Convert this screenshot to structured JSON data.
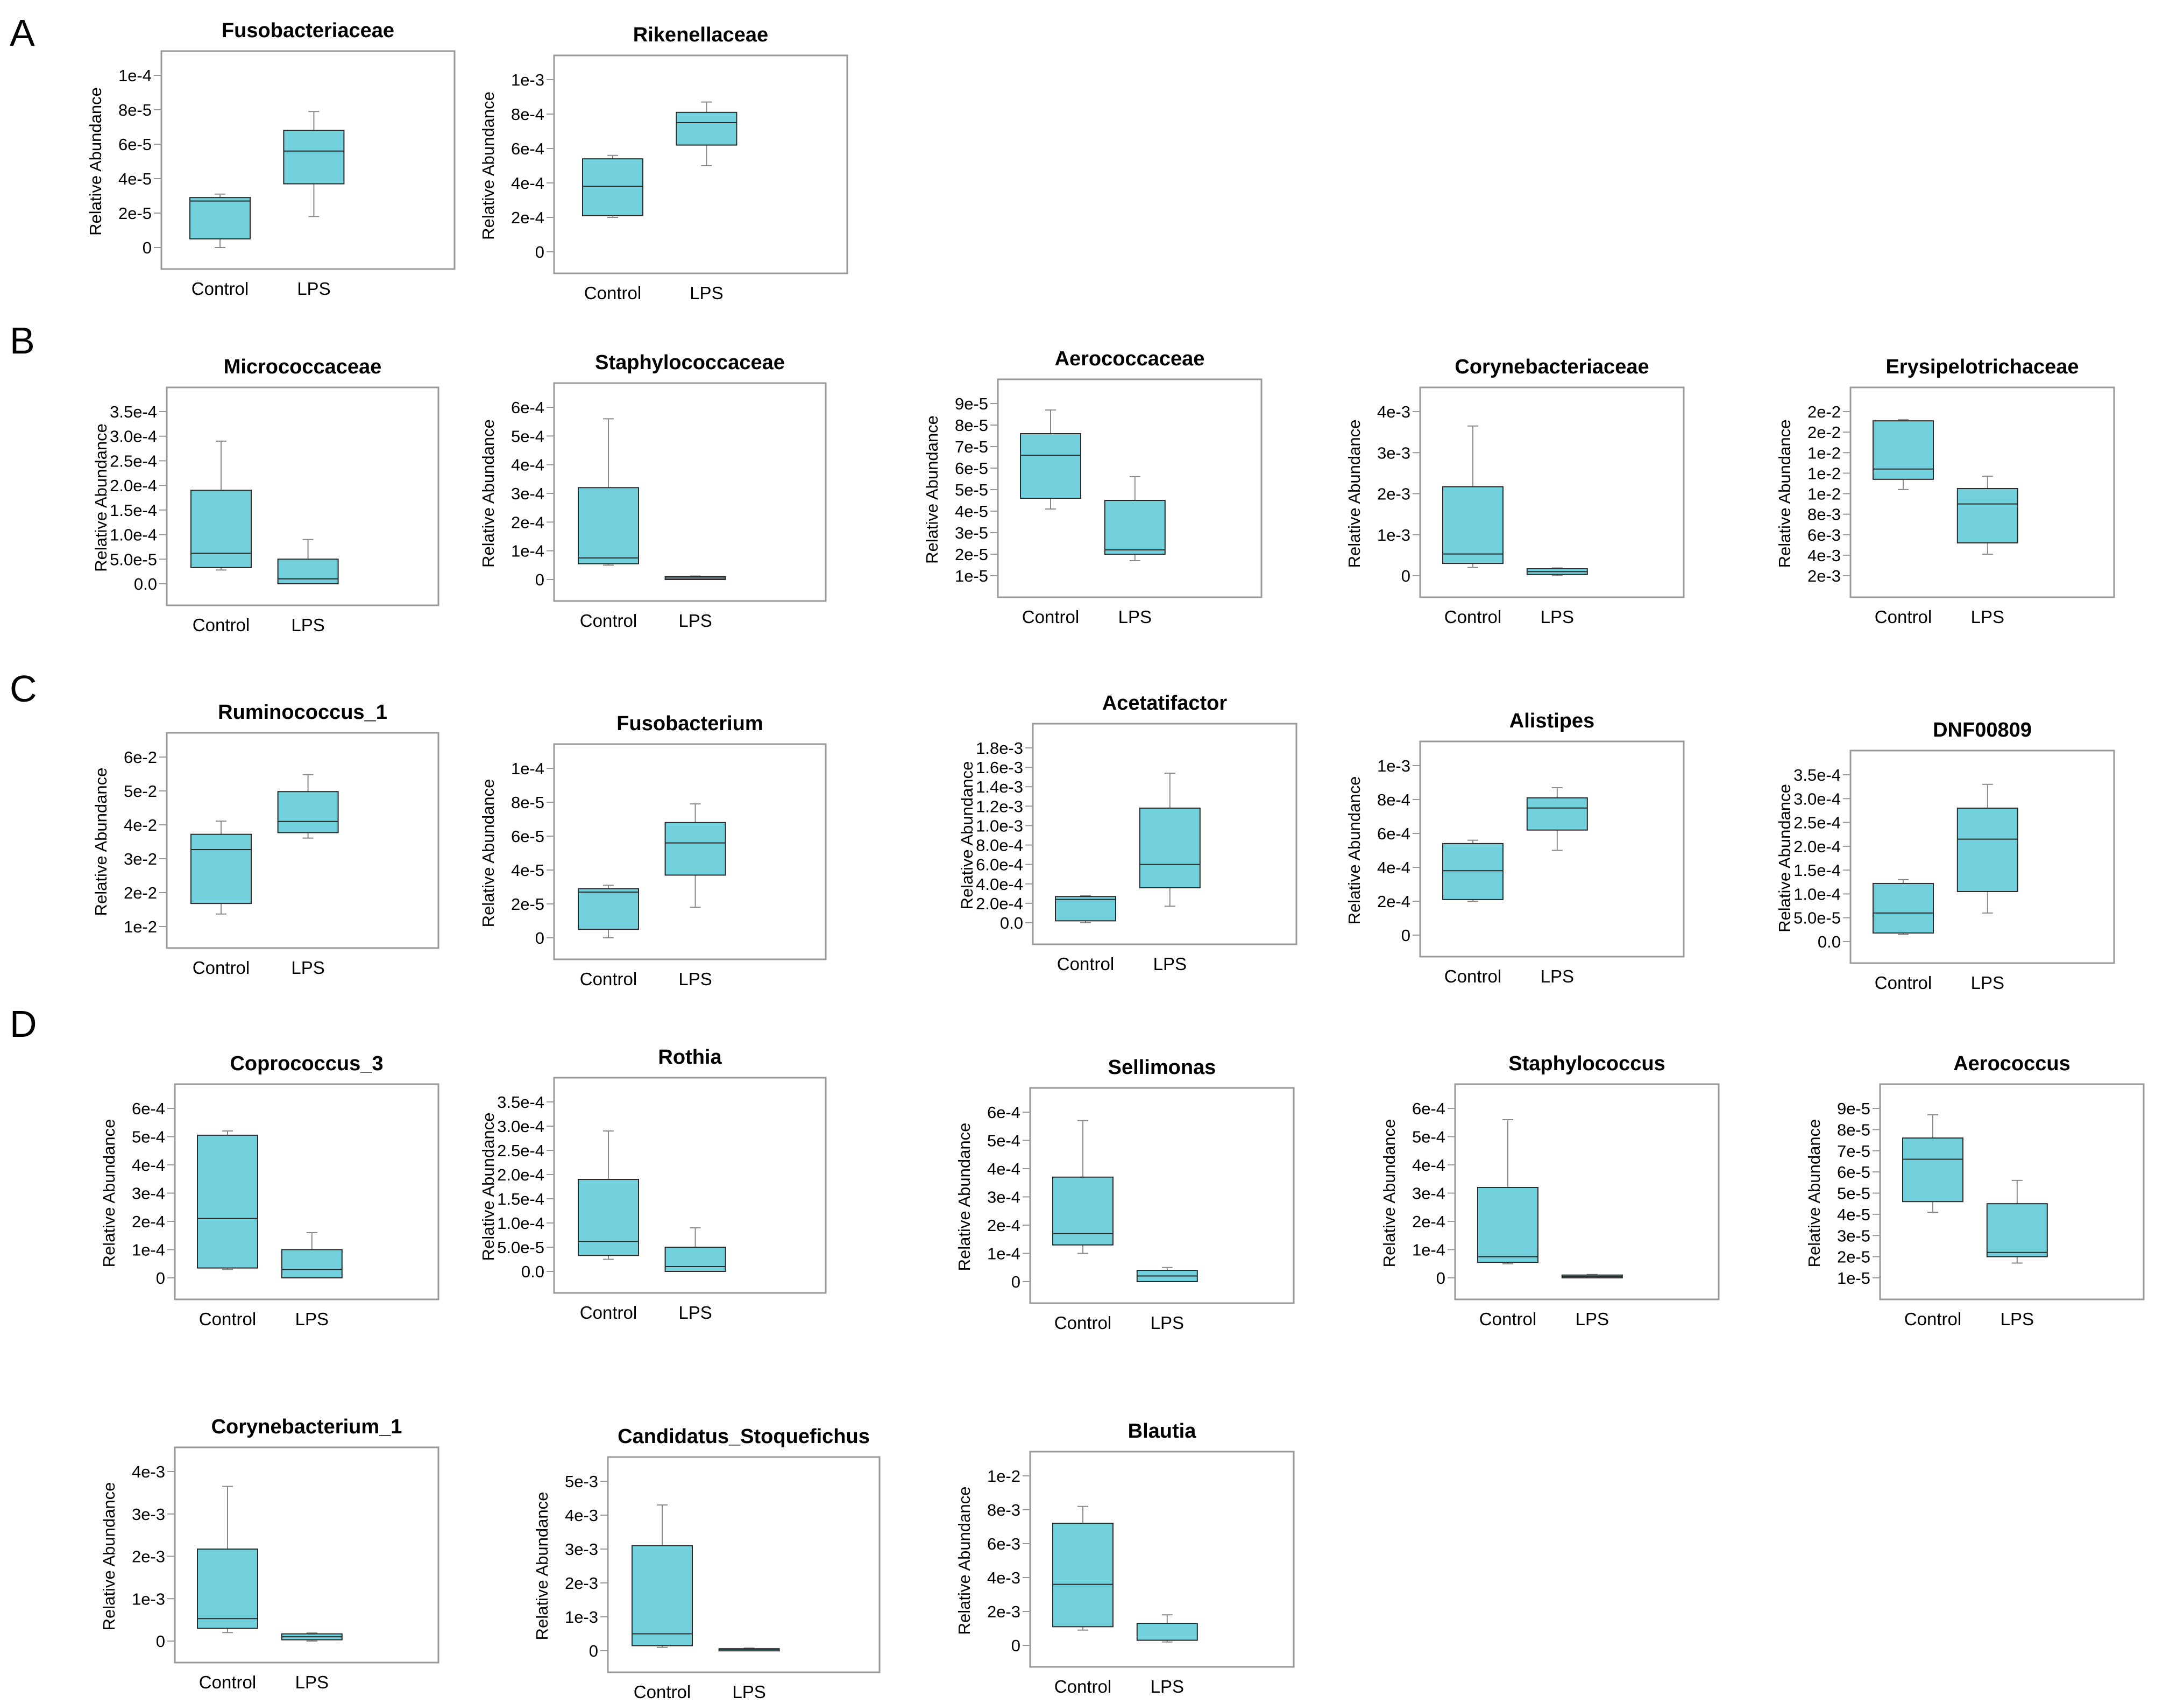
{
  "colors": {
    "box_fill": "#72D1DD",
    "box_edge": "#2a2a2a",
    "frame": "#999999",
    "text": "#000000",
    "whisker": "#8a8a8a"
  },
  "panel_labels": [
    "A",
    "B",
    "C",
    "D"
  ],
  "chart_data": [
    {
      "type": "box",
      "title": "Fusobacteriaceae",
      "ylabel": "Relative Abundance",
      "categories": [
        "Control",
        "LPS"
      ],
      "yticks": [
        "0",
        "2e-5",
        "4e-5",
        "6e-5",
        "8e-5",
        "1e-4"
      ],
      "ylim": [
        0,
        0.0001
      ],
      "series": [
        {
          "name": "Control",
          "min": 0.0,
          "q1": 5e-06,
          "median": 2.7e-05,
          "q3": 2.9e-05,
          "max": 3.1e-05
        },
        {
          "name": "LPS",
          "min": 1.8e-05,
          "q1": 3.7e-05,
          "median": 5.6e-05,
          "q3": 6.8e-05,
          "max": 7.9e-05
        }
      ]
    },
    {
      "type": "box",
      "title": "Rikenellaceae",
      "ylabel": "Relative Abundance",
      "categories": [
        "Control",
        "LPS"
      ],
      "yticks": [
        "0",
        "2e-4",
        "4e-4",
        "6e-4",
        "8e-4",
        "1e-3"
      ],
      "ylim": [
        0,
        0.001
      ],
      "series": [
        {
          "name": "Control",
          "min": 0.0002,
          "q1": 0.00021,
          "median": 0.00038,
          "q3": 0.00054,
          "max": 0.00056
        },
        {
          "name": "LPS",
          "min": 0.0005,
          "q1": 0.00062,
          "median": 0.00075,
          "q3": 0.00081,
          "max": 0.00087
        }
      ]
    },
    {
      "type": "box",
      "title": "Micrococcaceae",
      "ylabel": "Relative Abundance",
      "categories": [
        "Control",
        "LPS"
      ],
      "yticks": [
        "0.0",
        "5.0e-5",
        "1.0e-4",
        "1.5e-4",
        "2.0e-4",
        "2.5e-4",
        "3.0e-4",
        "3.5e-4"
      ],
      "ylim": [
        0,
        0.00035
      ],
      "series": [
        {
          "name": "Control",
          "min": 2.8e-05,
          "q1": 3.3e-05,
          "median": 6.2e-05,
          "q3": 0.00019,
          "max": 0.00029
        },
        {
          "name": "LPS",
          "min": 0.0,
          "q1": 0.0,
          "median": 1e-05,
          "q3": 5e-05,
          "max": 9e-05
        }
      ]
    },
    {
      "type": "box",
      "title": "Staphylococcaceae",
      "ylabel": "Relative Abundance",
      "categories": [
        "Control",
        "LPS"
      ],
      "yticks": [
        "0",
        "1e-4",
        "2e-4",
        "3e-4",
        "4e-4",
        "5e-4",
        "6e-4"
      ],
      "ylim": [
        0,
        0.0006
      ],
      "series": [
        {
          "name": "Control",
          "min": 5e-05,
          "q1": 5.5e-05,
          "median": 7.5e-05,
          "q3": 0.00032,
          "max": 0.00056
        },
        {
          "name": "LPS",
          "min": 0.0,
          "q1": 0.0,
          "median": 5e-06,
          "q3": 1e-05,
          "max": 1.2e-05
        }
      ]
    },
    {
      "type": "box",
      "title": "Aerococcaceae",
      "ylabel": "Relative Abundance",
      "categories": [
        "Control",
        "LPS"
      ],
      "yticks": [
        "1e-5",
        "2e-5",
        "3e-5",
        "4e-5",
        "5e-5",
        "6e-5",
        "7e-5",
        "8e-5",
        "9e-5"
      ],
      "ylim": [
        1e-05,
        9e-05
      ],
      "series": [
        {
          "name": "Control",
          "min": 4.1e-05,
          "q1": 4.6e-05,
          "median": 6.6e-05,
          "q3": 7.6e-05,
          "max": 8.7e-05
        },
        {
          "name": "LPS",
          "min": 1.7e-05,
          "q1": 2e-05,
          "median": 2.2e-05,
          "q3": 4.5e-05,
          "max": 5.6e-05
        }
      ]
    },
    {
      "type": "box",
      "title": "Corynebacteriaceae",
      "ylabel": "Relative Abundance",
      "categories": [
        "Control",
        "LPS"
      ],
      "yticks": [
        "0",
        "1e-3",
        "2e-3",
        "3e-3",
        "4e-3"
      ],
      "ylim": [
        0,
        0.004
      ],
      "series": [
        {
          "name": "Control",
          "min": 0.0002,
          "q1": 0.0003,
          "median": 0.00053,
          "q3": 0.00217,
          "max": 0.00365
        },
        {
          "name": "LPS",
          "min": 0.0,
          "q1": 3e-05,
          "median": 0.0001,
          "q3": 0.00017,
          "max": 0.00019
        }
      ]
    },
    {
      "type": "box",
      "title": "Erysipelotrichaceae",
      "ylabel": "Relative Abundance",
      "categories": [
        "Control",
        "LPS"
      ],
      "yticks": [
        "2e-3",
        "4e-3",
        "6e-3",
        "8e-3",
        "1e-2",
        "1e-2",
        "1e-2",
        "2e-2",
        "2e-2"
      ],
      "ylim": [
        0.002,
        0.018
      ],
      "series": [
        {
          "name": "Control",
          "min": 0.0104,
          "q1": 0.0114,
          "median": 0.0124,
          "q3": 0.0171,
          "max": 0.0172
        },
        {
          "name": "LPS",
          "min": 0.0041,
          "q1": 0.0052,
          "median": 0.009,
          "q3": 0.0105,
          "max": 0.0117
        }
      ]
    },
    {
      "type": "box",
      "title": "Ruminococcus_1",
      "ylabel": "Relative Abundance",
      "categories": [
        "Control",
        "LPS"
      ],
      "yticks": [
        "1e-2",
        "2e-2",
        "3e-2",
        "4e-2",
        "5e-2",
        "6e-2"
      ],
      "ylim": [
        0.01,
        0.06
      ],
      "series": [
        {
          "name": "Control",
          "min": 0.0137,
          "q1": 0.0168,
          "median": 0.0327,
          "q3": 0.0372,
          "max": 0.0411
        },
        {
          "name": "LPS",
          "min": 0.0361,
          "q1": 0.0377,
          "median": 0.041,
          "q3": 0.0498,
          "max": 0.0548
        }
      ]
    },
    {
      "type": "box",
      "title": "Fusobacterium",
      "ylabel": "Relative Abundance",
      "categories": [
        "Control",
        "LPS"
      ],
      "yticks": [
        "0",
        "2e-5",
        "4e-5",
        "6e-5",
        "8e-5",
        "1e-4"
      ],
      "ylim": [
        0,
        0.0001
      ],
      "series": [
        {
          "name": "Control",
          "min": 0.0,
          "q1": 5e-06,
          "median": 2.7e-05,
          "q3": 2.9e-05,
          "max": 3.1e-05
        },
        {
          "name": "LPS",
          "min": 1.8e-05,
          "q1": 3.7e-05,
          "median": 5.6e-05,
          "q3": 6.8e-05,
          "max": 7.9e-05
        }
      ]
    },
    {
      "type": "box",
      "title": "Acetatifactor",
      "ylabel": "Relative Abundance",
      "categories": [
        "Control",
        "LPS"
      ],
      "yticks": [
        "0.0",
        "2.0e-4",
        "4.0e-4",
        "6.0e-4",
        "8.0e-4",
        "1.0e-3",
        "1.2e-3",
        "1.4e-3",
        "1.6e-3",
        "1.8e-3"
      ],
      "ylim": [
        0,
        0.0018
      ],
      "series": [
        {
          "name": "Control",
          "min": 0.0,
          "q1": 2e-05,
          "median": 0.00024,
          "q3": 0.00027,
          "max": 0.00028
        },
        {
          "name": "LPS",
          "min": 0.00017,
          "q1": 0.00036,
          "median": 0.0006,
          "q3": 0.00118,
          "max": 0.00154
        }
      ]
    },
    {
      "type": "box",
      "title": "Alistipes",
      "ylabel": "Relative Abundance",
      "categories": [
        "Control",
        "LPS"
      ],
      "yticks": [
        "0",
        "2e-4",
        "4e-4",
        "6e-4",
        "8e-4",
        "1e-3"
      ],
      "ylim": [
        0,
        0.001
      ],
      "series": [
        {
          "name": "Control",
          "min": 0.0002,
          "q1": 0.00021,
          "median": 0.00038,
          "q3": 0.00054,
          "max": 0.00056
        },
        {
          "name": "LPS",
          "min": 0.0005,
          "q1": 0.00062,
          "median": 0.00075,
          "q3": 0.00081,
          "max": 0.00087
        }
      ]
    },
    {
      "type": "box",
      "title": "DNF00809",
      "ylabel": "Relative Abundance",
      "categories": [
        "Control",
        "LPS"
      ],
      "yticks": [
        "0.0",
        "5.0e-5",
        "1.0e-4",
        "1.5e-4",
        "2.0e-4",
        "2.5e-4",
        "3.0e-4",
        "3.5e-4"
      ],
      "ylim": [
        0,
        0.00035
      ],
      "series": [
        {
          "name": "Control",
          "min": 1.5e-05,
          "q1": 1.8e-05,
          "median": 6e-05,
          "q3": 0.000122,
          "max": 0.00013
        },
        {
          "name": "LPS",
          "min": 6e-05,
          "q1": 0.000105,
          "median": 0.000215,
          "q3": 0.00028,
          "max": 0.00033
        }
      ]
    },
    {
      "type": "box",
      "title": "Coprococcus_3",
      "ylabel": "Relative Abundance",
      "categories": [
        "Control",
        "LPS"
      ],
      "yticks": [
        "0",
        "1e-4",
        "2e-4",
        "3e-4",
        "4e-4",
        "5e-4",
        "6e-4"
      ],
      "ylim": [
        0,
        0.0006
      ],
      "series": [
        {
          "name": "Control",
          "min": 3e-05,
          "q1": 3.5e-05,
          "median": 0.00021,
          "q3": 0.000505,
          "max": 0.00052
        },
        {
          "name": "LPS",
          "min": 0.0,
          "q1": 0.0,
          "median": 3e-05,
          "q3": 0.0001,
          "max": 0.00016
        }
      ]
    },
    {
      "type": "box",
      "title": "Rothia",
      "ylabel": "Relative Abundance",
      "categories": [
        "Control",
        "LPS"
      ],
      "yticks": [
        "0.0",
        "5.0e-5",
        "1.0e-4",
        "1.5e-4",
        "2.0e-4",
        "2.5e-4",
        "3.0e-4",
        "3.5e-4"
      ],
      "ylim": [
        0,
        0.00035
      ],
      "series": [
        {
          "name": "Control",
          "min": 2.5e-05,
          "q1": 3.3e-05,
          "median": 6.2e-05,
          "q3": 0.00019,
          "max": 0.00029
        },
        {
          "name": "LPS",
          "min": 0.0,
          "q1": 0.0,
          "median": 1e-05,
          "q3": 5e-05,
          "max": 9e-05
        }
      ]
    },
    {
      "type": "box",
      "title": "Sellimonas",
      "ylabel": "Relative Abundance",
      "categories": [
        "Control",
        "LPS"
      ],
      "yticks": [
        "0",
        "1e-4",
        "2e-4",
        "3e-4",
        "4e-4",
        "5e-4",
        "6e-4"
      ],
      "ylim": [
        0,
        0.0006
      ],
      "series": [
        {
          "name": "Control",
          "min": 0.0001,
          "q1": 0.00013,
          "median": 0.00017,
          "q3": 0.00037,
          "max": 0.00057
        },
        {
          "name": "LPS",
          "min": 0.0,
          "q1": 0.0,
          "median": 2e-05,
          "q3": 4e-05,
          "max": 5e-05
        }
      ]
    },
    {
      "type": "box",
      "title": "Staphylococcus",
      "ylabel": "Relative Abundance",
      "categories": [
        "Control",
        "LPS"
      ],
      "yticks": [
        "0",
        "1e-4",
        "2e-4",
        "3e-4",
        "4e-4",
        "5e-4",
        "6e-4"
      ],
      "ylim": [
        0,
        0.0006
      ],
      "series": [
        {
          "name": "Control",
          "min": 5e-05,
          "q1": 5.5e-05,
          "median": 7.5e-05,
          "q3": 0.00032,
          "max": 0.00056
        },
        {
          "name": "LPS",
          "min": 0.0,
          "q1": 0.0,
          "median": 5e-06,
          "q3": 1e-05,
          "max": 1.2e-05
        }
      ]
    },
    {
      "type": "box",
      "title": "Aerococcus",
      "ylabel": "Relative Abundance",
      "categories": [
        "Control",
        "LPS"
      ],
      "yticks": [
        "1e-5",
        "2e-5",
        "3e-5",
        "4e-5",
        "5e-5",
        "6e-5",
        "7e-5",
        "8e-5",
        "9e-5"
      ],
      "ylim": [
        1e-05,
        9e-05
      ],
      "series": [
        {
          "name": "Control",
          "min": 4.1e-05,
          "q1": 4.6e-05,
          "median": 6.6e-05,
          "q3": 7.6e-05,
          "max": 8.7e-05
        },
        {
          "name": "LPS",
          "min": 1.7e-05,
          "q1": 2e-05,
          "median": 2.2e-05,
          "q3": 4.5e-05,
          "max": 5.6e-05
        }
      ]
    },
    {
      "type": "box",
      "title": "Corynebacterium_1",
      "ylabel": "Relative Abundance",
      "categories": [
        "Control",
        "LPS"
      ],
      "yticks": [
        "0",
        "1e-3",
        "2e-3",
        "3e-3",
        "4e-3"
      ],
      "ylim": [
        0,
        0.004
      ],
      "series": [
        {
          "name": "Control",
          "min": 0.0002,
          "q1": 0.0003,
          "median": 0.00053,
          "q3": 0.00217,
          "max": 0.00365
        },
        {
          "name": "LPS",
          "min": 0.0,
          "q1": 3e-05,
          "median": 0.0001,
          "q3": 0.00017,
          "max": 0.00019
        }
      ]
    },
    {
      "type": "box",
      "title": "Candidatus_Stoquefichus",
      "ylabel": "Relative Abundance",
      "categories": [
        "Control",
        "LPS"
      ],
      "yticks": [
        "0",
        "1e-3",
        "2e-3",
        "3e-3",
        "4e-3",
        "5e-3"
      ],
      "ylim": [
        0,
        0.005
      ],
      "series": [
        {
          "name": "Control",
          "min": 0.0001,
          "q1": 0.00015,
          "median": 0.0005,
          "q3": 0.0031,
          "max": 0.0043
        },
        {
          "name": "LPS",
          "min": 0.0,
          "q1": 2e-05,
          "median": 4e-05,
          "q3": 6e-05,
          "max": 8e-05
        }
      ]
    },
    {
      "type": "box",
      "title": "Blautia",
      "ylabel": "Relative Abundance",
      "categories": [
        "Control",
        "LPS"
      ],
      "yticks": [
        "0",
        "2e-3",
        "4e-3",
        "6e-3",
        "8e-3",
        "1e-2"
      ],
      "ylim": [
        0,
        0.01
      ],
      "series": [
        {
          "name": "Control",
          "min": 0.0009,
          "q1": 0.0011,
          "median": 0.0036,
          "q3": 0.0072,
          "max": 0.0082
        },
        {
          "name": "LPS",
          "min": 0.0002,
          "q1": 0.0003,
          "median": 0.0003,
          "q3": 0.0013,
          "max": 0.0018
        }
      ]
    }
  ]
}
